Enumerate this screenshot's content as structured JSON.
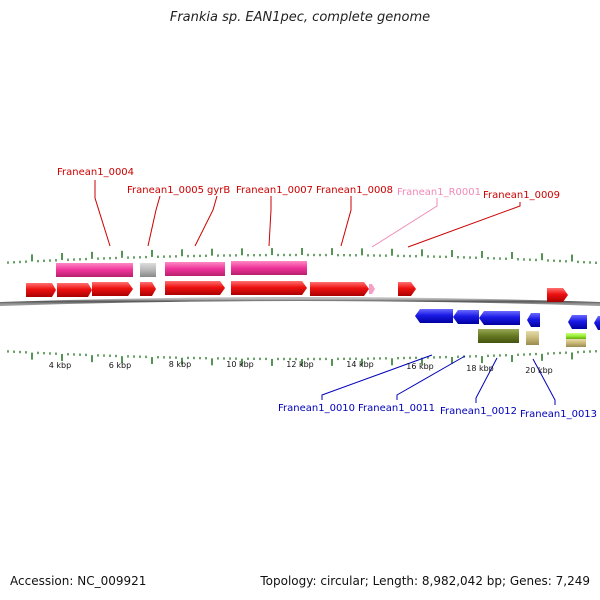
{
  "title": "Frankia sp. EAN1pec, complete genome",
  "footer": {
    "accession": "Accession: NC_009921",
    "summary": "Topology: circular; Length: 8,982,042 bp; Genes: 7,249"
  },
  "colors": {
    "cds": "#ee1111",
    "gene_magenta": "#ee3399",
    "gene_gray": "#b8b8b8",
    "rrna_pink": "#f5a0c8",
    "cds_blue": "#1a1ae6",
    "olive": "#667722",
    "tan": "#c8b878",
    "lime": "#99ee33",
    "tick": "#2a7a2a",
    "fwd_label": "#cc0000",
    "rev_label": "#0000bb",
    "rna_label": "#f08ab8"
  },
  "scale_labels": [
    "4 kbp",
    "6 kbp",
    "8 kbp",
    "10 kbp",
    "12 kbp",
    "14 kbp",
    "16 kbp",
    "18 kbp",
    "20 kbp"
  ],
  "forward_labels": [
    "Franean1_0004",
    "Franean1_0005",
    "gyrB",
    "Franean1_0007",
    "Franean1_0008",
    "Franean1_R0001",
    "Franean1_0009"
  ],
  "reverse_labels": [
    "Franean1_0010",
    "Franean1_0011",
    "Franean1_0012",
    "Franean1_0013"
  ]
}
